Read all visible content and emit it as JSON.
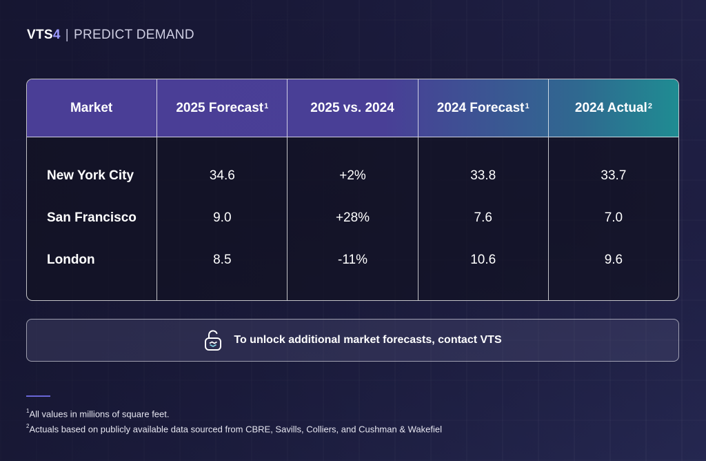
{
  "header": {
    "brand": "VTS",
    "brand_num": "4",
    "separator": "|",
    "title": "PREDICT DEMAND"
  },
  "table": {
    "columns": [
      {
        "label": "Market",
        "sup": ""
      },
      {
        "label": "2025 Forecast",
        "sup": "1"
      },
      {
        "label": "2025 vs. 2024",
        "sup": ""
      },
      {
        "label": "2024 Forecast",
        "sup": "1"
      },
      {
        "label": "2024 Actual",
        "sup": "2"
      }
    ],
    "rows": [
      {
        "market": "New York City",
        "f2025": "34.6",
        "change": "+2%",
        "f2024": "33.8",
        "a2024": "33.7"
      },
      {
        "market": "San Francisco",
        "f2025": "9.0",
        "change": "+28%",
        "f2024": "7.6",
        "a2024": "7.0"
      },
      {
        "market": "London",
        "f2025": "8.5",
        "change": "-11%",
        "f2024": "10.6",
        "a2024": "9.6"
      }
    ]
  },
  "cta": {
    "icon": "unlock-icon",
    "text": "To unlock additional market forecasts, contact VTS"
  },
  "footnotes": [
    {
      "num": "1",
      "text": "All values in millions of square feet."
    },
    {
      "num": "2",
      "text": "Actuals based on publicly available data sourced from CBRE, Savills, Colliers, and Cushman & Wakefiel"
    }
  ],
  "colors": {
    "accent": "#9d9bff",
    "header_gradient_start": "#4a3e96",
    "header_gradient_end": "#1f8c92",
    "rule": "#6a66d8"
  }
}
